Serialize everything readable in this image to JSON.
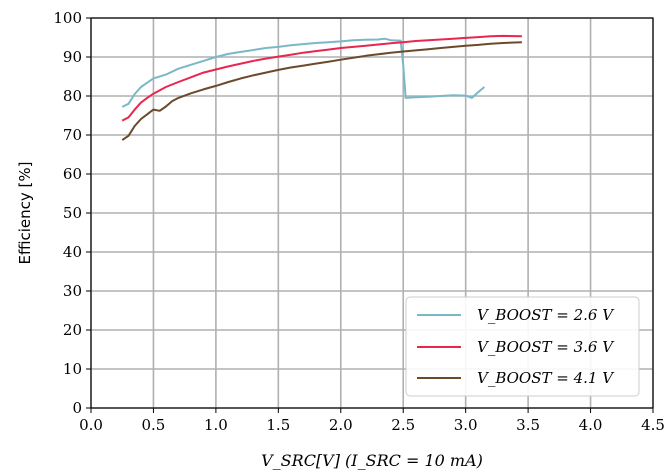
{
  "chart_data": {
    "type": "line",
    "xlabel": "V_SRC[V] (I_SRC = 10 mA)",
    "ylabel": "Efficiency [%]",
    "xlim": [
      0.0,
      4.5
    ],
    "ylim": [
      0,
      100
    ],
    "xticks": [
      "0.0",
      "0.5",
      "1.0",
      "1.5",
      "2.0",
      "2.5",
      "3.0",
      "3.5",
      "4.0",
      "4.5"
    ],
    "yticks": [
      "0",
      "10",
      "20",
      "30",
      "40",
      "50",
      "60",
      "70",
      "80",
      "90",
      "100"
    ],
    "grid": true,
    "legend_position": "bottom-right",
    "series": [
      {
        "name": "V_BOOST = 2.6 V",
        "color": "#7ab8c8",
        "points": [
          [
            0.25,
            77.2
          ],
          [
            0.3,
            78
          ],
          [
            0.35,
            80.5
          ],
          [
            0.4,
            82.3
          ],
          [
            0.45,
            83.4
          ],
          [
            0.5,
            84.5
          ],
          [
            0.6,
            85.5
          ],
          [
            0.7,
            87
          ],
          [
            0.8,
            88
          ],
          [
            0.9,
            89
          ],
          [
            1.0,
            90
          ],
          [
            1.1,
            90.8
          ],
          [
            1.2,
            91.3
          ],
          [
            1.3,
            91.8
          ],
          [
            1.4,
            92.3
          ],
          [
            1.5,
            92.6
          ],
          [
            1.6,
            93
          ],
          [
            1.7,
            93.3
          ],
          [
            1.8,
            93.6
          ],
          [
            1.9,
            93.8
          ],
          [
            2.0,
            94
          ],
          [
            2.1,
            94.3
          ],
          [
            2.2,
            94.4
          ],
          [
            2.3,
            94.5
          ],
          [
            2.35,
            94.7
          ],
          [
            2.4,
            94.3
          ],
          [
            2.48,
            94.2
          ],
          [
            2.5,
            88
          ],
          [
            2.52,
            79.5
          ],
          [
            2.55,
            79.6
          ],
          [
            2.6,
            79.7
          ],
          [
            2.7,
            79.8
          ],
          [
            2.8,
            80
          ],
          [
            2.9,
            80.2
          ],
          [
            3.0,
            80.1
          ],
          [
            3.05,
            79.5
          ],
          [
            3.1,
            81
          ],
          [
            3.15,
            82.3
          ]
        ]
      },
      {
        "name": "V_BOOST = 3.6 V",
        "color": "#e8264f",
        "points": [
          [
            0.25,
            73.7
          ],
          [
            0.3,
            74.5
          ],
          [
            0.35,
            76.5
          ],
          [
            0.4,
            78.3
          ],
          [
            0.45,
            79.5
          ],
          [
            0.5,
            80.6
          ],
          [
            0.6,
            82.3
          ],
          [
            0.7,
            83.6
          ],
          [
            0.8,
            84.8
          ],
          [
            0.9,
            86
          ],
          [
            1.0,
            86.8
          ],
          [
            1.1,
            87.6
          ],
          [
            1.2,
            88.3
          ],
          [
            1.3,
            89
          ],
          [
            1.4,
            89.6
          ],
          [
            1.5,
            90.1
          ],
          [
            1.6,
            90.6
          ],
          [
            1.7,
            91.1
          ],
          [
            1.8,
            91.5
          ],
          [
            1.9,
            91.9
          ],
          [
            2.0,
            92.3
          ],
          [
            2.1,
            92.6
          ],
          [
            2.2,
            92.9
          ],
          [
            2.3,
            93.2
          ],
          [
            2.4,
            93.5
          ],
          [
            2.5,
            93.8
          ],
          [
            2.6,
            94.1
          ],
          [
            2.7,
            94.3
          ],
          [
            2.8,
            94.5
          ],
          [
            2.9,
            94.7
          ],
          [
            3.0,
            94.9
          ],
          [
            3.1,
            95.1
          ],
          [
            3.2,
            95.3
          ],
          [
            3.3,
            95.4
          ],
          [
            3.45,
            95.3
          ]
        ]
      },
      {
        "name": "V_BOOST = 4.1 V",
        "color": "#6b4a2b",
        "points": [
          [
            0.25,
            68.7
          ],
          [
            0.3,
            69.8
          ],
          [
            0.35,
            72.3
          ],
          [
            0.4,
            74.1
          ],
          [
            0.45,
            75.3
          ],
          [
            0.5,
            76.5
          ],
          [
            0.55,
            76.2
          ],
          [
            0.6,
            77.3
          ],
          [
            0.65,
            78.7
          ],
          [
            0.7,
            79.5
          ],
          [
            0.8,
            80.7
          ],
          [
            0.9,
            81.7
          ],
          [
            1.0,
            82.6
          ],
          [
            1.1,
            83.6
          ],
          [
            1.2,
            84.5
          ],
          [
            1.3,
            85.3
          ],
          [
            1.4,
            86
          ],
          [
            1.5,
            86.7
          ],
          [
            1.6,
            87.3
          ],
          [
            1.7,
            87.8
          ],
          [
            1.8,
            88.3
          ],
          [
            1.9,
            88.8
          ],
          [
            2.0,
            89.3
          ],
          [
            2.1,
            89.8
          ],
          [
            2.2,
            90.3
          ],
          [
            2.3,
            90.7
          ],
          [
            2.4,
            91.1
          ],
          [
            2.5,
            91.4
          ],
          [
            2.6,
            91.7
          ],
          [
            2.7,
            92
          ],
          [
            2.8,
            92.3
          ],
          [
            2.9,
            92.6
          ],
          [
            3.0,
            92.9
          ],
          [
            3.1,
            93.1
          ],
          [
            3.2,
            93.4
          ],
          [
            3.3,
            93.6
          ],
          [
            3.45,
            93.8
          ]
        ]
      }
    ]
  }
}
